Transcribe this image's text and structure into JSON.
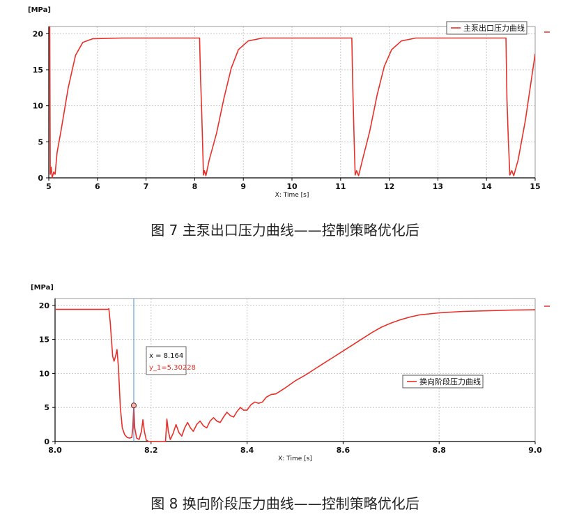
{
  "colors": {
    "series": "#e8302a",
    "grid": "#c8c8c8",
    "axis": "#000000",
    "cursor": "#4a8fd0"
  },
  "captions": [
    "图 7  主泵出口压力曲线——控制策略优化后",
    "图 8  换向阶段压力曲线——控制策略优化后"
  ],
  "chart_data": [
    {
      "type": "line",
      "unit_label": "[MPa]",
      "xlabel": "X: Time [s]",
      "ylabel": "",
      "xlim": [
        5,
        15
      ],
      "ylim": [
        0,
        21
      ],
      "x_ticks": [
        5,
        6,
        7,
        8,
        9,
        10,
        11,
        12,
        13,
        14,
        15
      ],
      "y_ticks": [
        0,
        5,
        10,
        15,
        20
      ],
      "legend": "top-right",
      "series": [
        {
          "name": "主泵出口压力曲线",
          "points": [
            [
              5.0,
              22.0
            ],
            [
              5.02,
              22.0
            ],
            [
              5.03,
              0.5
            ],
            [
              5.05,
              1.5
            ],
            [
              5.07,
              0.0
            ],
            [
              5.1,
              0.8
            ],
            [
              5.13,
              0.5
            ],
            [
              5.17,
              3.5
            ],
            [
              5.25,
              6.5
            ],
            [
              5.4,
              12.5
            ],
            [
              5.55,
              17.0
            ],
            [
              5.7,
              18.8
            ],
            [
              5.9,
              19.3
            ],
            [
              6.5,
              19.4
            ],
            [
              8.07,
              19.4
            ],
            [
              8.1,
              19.4
            ],
            [
              8.12,
              13.8
            ],
            [
              8.14,
              10.0
            ],
            [
              8.16,
              5.3
            ],
            [
              8.18,
              0.4
            ],
            [
              8.2,
              1.0
            ],
            [
              8.23,
              0.3
            ],
            [
              8.3,
              2.5
            ],
            [
              8.45,
              6.2
            ],
            [
              8.6,
              11.0
            ],
            [
              8.75,
              15.2
            ],
            [
              8.9,
              17.8
            ],
            [
              9.1,
              19.0
            ],
            [
              9.4,
              19.4
            ],
            [
              11.2,
              19.4
            ],
            [
              11.23,
              19.4
            ],
            [
              11.25,
              12.5
            ],
            [
              11.28,
              5.0
            ],
            [
              11.3,
              0.4
            ],
            [
              11.33,
              1.0
            ],
            [
              11.37,
              0.3
            ],
            [
              11.45,
              2.5
            ],
            [
              11.6,
              6.5
            ],
            [
              11.75,
              11.5
            ],
            [
              11.9,
              15.5
            ],
            [
              12.05,
              17.8
            ],
            [
              12.25,
              19.0
            ],
            [
              12.55,
              19.4
            ],
            [
              14.38,
              19.4
            ],
            [
              14.4,
              19.4
            ],
            [
              14.42,
              11.0
            ],
            [
              14.45,
              5.0
            ],
            [
              14.48,
              0.4
            ],
            [
              14.52,
              1.0
            ],
            [
              14.56,
              0.3
            ],
            [
              14.65,
              2.5
            ],
            [
              14.8,
              8.0
            ],
            [
              15.0,
              17.2
            ]
          ]
        }
      ]
    },
    {
      "type": "line",
      "unit_label": "[MPa]",
      "xlabel": "X: Time [s]",
      "ylabel": "",
      "xlim": [
        8.0,
        9.0
      ],
      "ylim": [
        0,
        21
      ],
      "x_ticks": [
        8.0,
        8.2,
        8.4,
        8.6,
        8.8,
        9.0
      ],
      "x_tick_labels": [
        "8.0",
        "8.2",
        "8.4",
        "8.6",
        "8.8",
        "9.0"
      ],
      "y_ticks": [
        0,
        5,
        10,
        15,
        20
      ],
      "legend": "center-right",
      "cursor": {
        "x_text": "x  = 8.164",
        "y_text": "y_1=5.30228",
        "x": 8.164,
        "y": 5.30228
      },
      "series": [
        {
          "name": "换向阶段压力曲线",
          "points": [
            [
              8.0,
              19.4
            ],
            [
              8.11,
              19.4
            ],
            [
              8.112,
              19.5
            ],
            [
              8.115,
              17.5
            ],
            [
              8.12,
              12.5
            ],
            [
              8.123,
              11.8
            ],
            [
              8.126,
              12.5
            ],
            [
              8.129,
              13.5
            ],
            [
              8.132,
              11.0
            ],
            [
              8.136,
              5.0
            ],
            [
              8.14,
              2.0
            ],
            [
              8.145,
              1.0
            ],
            [
              8.15,
              0.6
            ],
            [
              8.155,
              0.5
            ],
            [
              8.16,
              0.6
            ],
            [
              8.162,
              2.0
            ],
            [
              8.164,
              5.3
            ],
            [
              8.166,
              2.0
            ],
            [
              8.17,
              0.5
            ],
            [
              8.175,
              0.3
            ],
            [
              8.18,
              1.5
            ],
            [
              8.183,
              3.2
            ],
            [
              8.186,
              1.5
            ],
            [
              8.19,
              0.2
            ],
            [
              8.195,
              0.0
            ],
            [
              8.23,
              0.0
            ],
            [
              8.233,
              3.3
            ],
            [
              8.236,
              1.5
            ],
            [
              8.24,
              0.3
            ],
            [
              8.246,
              1.2
            ],
            [
              8.252,
              2.5
            ],
            [
              8.258,
              1.3
            ],
            [
              8.264,
              0.8
            ],
            [
              8.27,
              2.0
            ],
            [
              8.276,
              2.8
            ],
            [
              8.282,
              2.0
            ],
            [
              8.288,
              1.5
            ],
            [
              8.295,
              2.5
            ],
            [
              8.302,
              3.0
            ],
            [
              8.309,
              2.3
            ],
            [
              8.316,
              2.0
            ],
            [
              8.323,
              3.0
            ],
            [
              8.33,
              3.5
            ],
            [
              8.337,
              3.0
            ],
            [
              8.344,
              2.8
            ],
            [
              8.351,
              3.6
            ],
            [
              8.358,
              4.3
            ],
            [
              8.365,
              3.8
            ],
            [
              8.372,
              3.6
            ],
            [
              8.379,
              4.4
            ],
            [
              8.386,
              5.0
            ],
            [
              8.393,
              4.6
            ],
            [
              8.4,
              4.6
            ],
            [
              8.408,
              5.4
            ],
            [
              8.416,
              5.8
            ],
            [
              8.424,
              5.6
            ],
            [
              8.432,
              5.8
            ],
            [
              8.44,
              6.5
            ],
            [
              8.45,
              6.9
            ],
            [
              8.46,
              7.0
            ],
            [
              8.48,
              7.9
            ],
            [
              8.5,
              8.9
            ],
            [
              8.52,
              9.7
            ],
            [
              8.54,
              10.6
            ],
            [
              8.56,
              11.5
            ],
            [
              8.58,
              12.4
            ],
            [
              8.6,
              13.3
            ],
            [
              8.62,
              14.2
            ],
            [
              8.64,
              15.1
            ],
            [
              8.66,
              16.0
            ],
            [
              8.68,
              16.8
            ],
            [
              8.7,
              17.4
            ],
            [
              8.72,
              17.9
            ],
            [
              8.74,
              18.3
            ],
            [
              8.76,
              18.6
            ],
            [
              8.8,
              18.9
            ],
            [
              8.85,
              19.1
            ],
            [
              8.9,
              19.2
            ],
            [
              8.95,
              19.3
            ],
            [
              9.0,
              19.35
            ]
          ]
        }
      ]
    }
  ]
}
